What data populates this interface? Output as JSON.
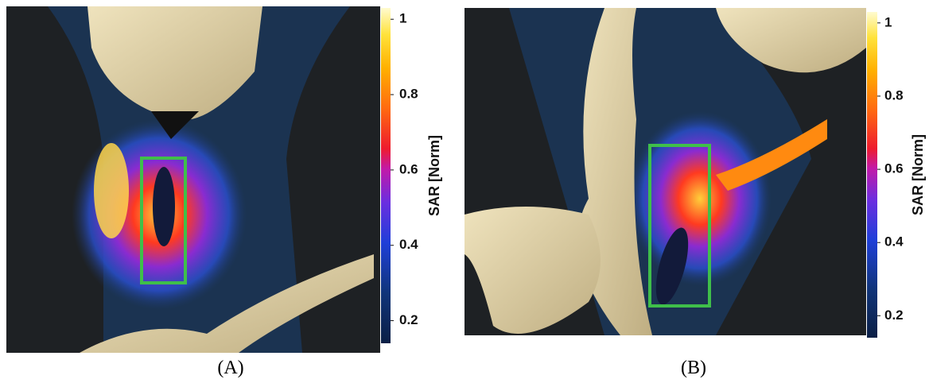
{
  "panels": [
    {
      "label": "(A)",
      "colorbar": {
        "title": "SAR [Norm]",
        "ylim": [
          0.14,
          1.03
        ],
        "yticks": [
          1,
          0.8,
          0.6,
          0.4,
          0.2
        ]
      }
    },
    {
      "label": "(B)",
      "colorbar": {
        "title": "SAR [Norm]",
        "ylim": [
          0.14,
          1.03
        ],
        "yticks": [
          1,
          0.8,
          0.6,
          0.4,
          0.2
        ]
      }
    }
  ]
}
